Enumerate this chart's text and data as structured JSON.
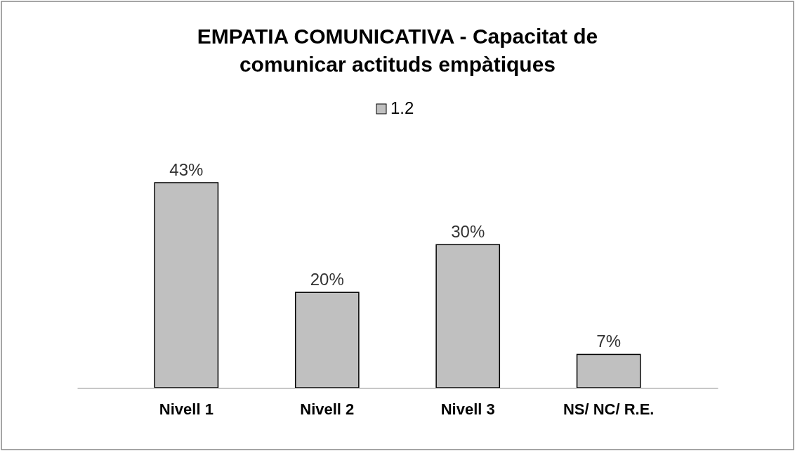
{
  "chart_data": {
    "type": "bar",
    "title": "EMPATIA COMUNICATIVA - Capacitat de comunicar actituds empàtiques",
    "categories": [
      "Nivell 1",
      "Nivell 2",
      "Nivell 3",
      "NS/ NC/ R.E."
    ],
    "series": [
      {
        "name": "1.2",
        "color": "#c0c0c0",
        "values": [
          43,
          20,
          30,
          7
        ],
        "value_labels": [
          "43%",
          "20%",
          "30%",
          "7%"
        ]
      }
    ],
    "legend": "top",
    "grid": false
  }
}
